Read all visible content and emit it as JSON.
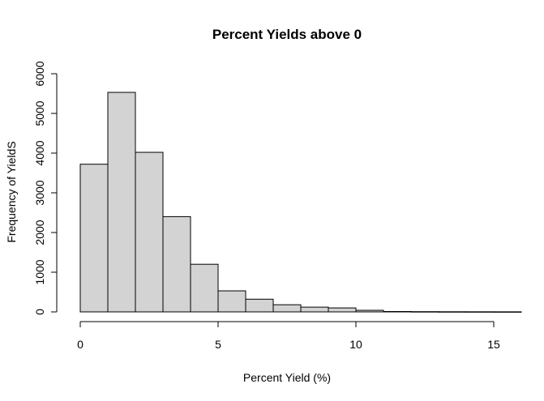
{
  "chart_data": {
    "type": "bar",
    "title": "Percent Yields above 0",
    "xlabel": "Percent Yield (%)",
    "ylabel": "Frequency of YieldS",
    "bins": [
      {
        "x0": 0,
        "x1": 1,
        "count": 3720
      },
      {
        "x0": 1,
        "x1": 2,
        "count": 5530
      },
      {
        "x0": 2,
        "x1": 3,
        "count": 4020
      },
      {
        "x0": 3,
        "x1": 4,
        "count": 2400
      },
      {
        "x0": 4,
        "x1": 5,
        "count": 1200
      },
      {
        "x0": 5,
        "x1": 6,
        "count": 530
      },
      {
        "x0": 6,
        "x1": 7,
        "count": 320
      },
      {
        "x0": 7,
        "x1": 8,
        "count": 180
      },
      {
        "x0": 8,
        "x1": 9,
        "count": 120
      },
      {
        "x0": 9,
        "x1": 10,
        "count": 100
      },
      {
        "x0": 10,
        "x1": 11,
        "count": 40
      },
      {
        "x0": 11,
        "x1": 12,
        "count": 10
      },
      {
        "x0": 12,
        "x1": 13,
        "count": 6
      },
      {
        "x0": 13,
        "x1": 14,
        "count": 4
      },
      {
        "x0": 14,
        "x1": 15,
        "count": 3
      },
      {
        "x0": 15,
        "x1": 16,
        "count": 2
      }
    ],
    "xlim": [
      0,
      15.6
    ],
    "ylim": [
      0,
      6000
    ],
    "x_ticks": [
      0,
      5,
      10,
      15
    ],
    "y_ticks": [
      0,
      1000,
      2000,
      3000,
      4000,
      5000,
      6000
    ],
    "bar_fill": "#d3d3d3",
    "bar_stroke": "#000000",
    "grid": false
  }
}
